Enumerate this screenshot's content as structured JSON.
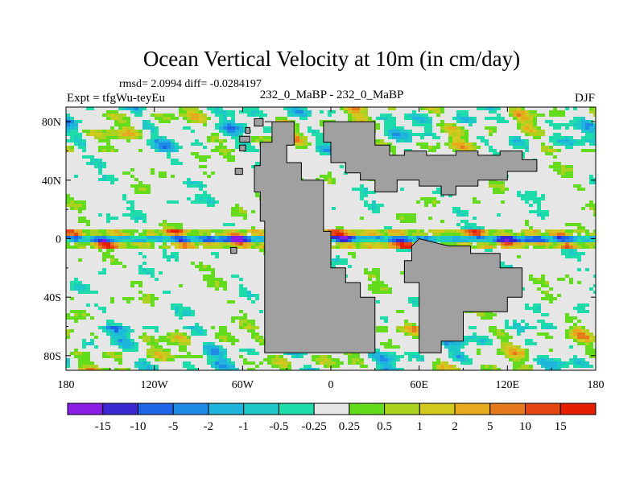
{
  "chart_data": {
    "type": "heatmap",
    "title": "Ocean Vertical Velocity at 10m (in cm/day)",
    "stats_line": "rmsd= 2.0994 diff= -0.0284197",
    "left_label": "Expt = tfgWu-teyEu",
    "center_label": "232_0_MaBP - 232_0_MaBP",
    "right_label": "DJF",
    "x_range": [
      -180,
      180
    ],
    "y_range": [
      -90,
      90
    ],
    "x_ticks": [
      {
        "value": -180,
        "label": "180"
      },
      {
        "value": -120,
        "label": "120W"
      },
      {
        "value": -60,
        "label": "60W"
      },
      {
        "value": 0,
        "label": "0"
      },
      {
        "value": 60,
        "label": "60E"
      },
      {
        "value": 120,
        "label": "120E"
      },
      {
        "value": 180,
        "label": "180"
      }
    ],
    "y_ticks": [
      {
        "value": 80,
        "label": "80N"
      },
      {
        "value": 40,
        "label": "40N"
      },
      {
        "value": 0,
        "label": "0"
      },
      {
        "value": -40,
        "label": "40S"
      },
      {
        "value": -80,
        "label": "80S"
      }
    ],
    "colorbar": {
      "labels": [
        "-15",
        "-10",
        "-5",
        "-2",
        "-1",
        "-0.5",
        "-0.25",
        "0.25",
        "0.5",
        "1",
        "2",
        "5",
        "10",
        "15"
      ],
      "colors": [
        "#8a1ee6",
        "#3c28d2",
        "#1e64e6",
        "#1e8ce6",
        "#1eb4dc",
        "#1ec8c8",
        "#1edcaa",
        "#e6e6e6",
        "#64dc1e",
        "#aad21e",
        "#d2c81e",
        "#e6aa1e",
        "#e6781e",
        "#e64614",
        "#e61e00"
      ]
    },
    "land_color": "#a0a0a0",
    "ocean_neutral_color": "#e6e6e6",
    "land_polygons": [
      [
        [
          -45,
          80
        ],
        [
          -40,
          80
        ],
        [
          -40,
          66
        ],
        [
          -48,
          66
        ],
        [
          -48,
          50
        ],
        [
          -52,
          50
        ],
        [
          -52,
          32
        ],
        [
          -48,
          32
        ],
        [
          -48,
          12
        ],
        [
          -45,
          12
        ],
        [
          -45,
          -78
        ],
        [
          30,
          -78
        ],
        [
          30,
          -40
        ],
        [
          20,
          -40
        ],
        [
          20,
          -30
        ],
        [
          10,
          -30
        ],
        [
          10,
          -20
        ],
        [
          0,
          -20
        ],
        [
          0,
          5
        ],
        [
          -5,
          5
        ],
        [
          -5,
          40
        ],
        [
          -20,
          40
        ],
        [
          -20,
          52
        ],
        [
          -30,
          52
        ],
        [
          -30,
          64
        ],
        [
          -25,
          64
        ],
        [
          -25,
          80
        ]
      ],
      [
        [
          -5,
          80
        ],
        [
          30,
          80
        ],
        [
          30,
          64
        ],
        [
          40,
          64
        ],
        [
          40,
          57
        ],
        [
          50,
          57
        ],
        [
          50,
          60
        ],
        [
          65,
          60
        ],
        [
          65,
          57
        ],
        [
          85,
          57
        ],
        [
          85,
          60
        ],
        [
          100,
          60
        ],
        [
          100,
          57
        ],
        [
          115,
          57
        ],
        [
          115,
          60
        ],
        [
          130,
          60
        ],
        [
          130,
          54
        ],
        [
          140,
          54
        ],
        [
          140,
          46
        ],
        [
          120,
          46
        ],
        [
          120,
          40
        ],
        [
          100,
          40
        ],
        [
          100,
          36
        ],
        [
          85,
          36
        ],
        [
          85,
          30
        ],
        [
          75,
          30
        ],
        [
          75,
          36
        ],
        [
          60,
          36
        ],
        [
          60,
          40
        ],
        [
          45,
          40
        ],
        [
          45,
          32
        ],
        [
          30,
          32
        ],
        [
          30,
          40
        ],
        [
          20,
          40
        ],
        [
          20,
          45
        ],
        [
          10,
          45
        ],
        [
          10,
          52
        ],
        [
          0,
          52
        ],
        [
          0,
          66
        ],
        [
          -5,
          66
        ]
      ],
      [
        [
          60,
          0
        ],
        [
          80,
          -5
        ],
        [
          95,
          -5
        ],
        [
          95,
          -10
        ],
        [
          115,
          -10
        ],
        [
          115,
          -20
        ],
        [
          130,
          -20
        ],
        [
          130,
          -40
        ],
        [
          120,
          -40
        ],
        [
          120,
          -50
        ],
        [
          90,
          -50
        ],
        [
          90,
          -70
        ],
        [
          75,
          -70
        ],
        [
          75,
          -78
        ],
        [
          60,
          -78
        ],
        [
          60,
          -30
        ],
        [
          50,
          -30
        ],
        [
          50,
          -15
        ],
        [
          55,
          -15
        ],
        [
          55,
          -5
        ]
      ],
      [
        [
          -58,
          76
        ],
        [
          -55,
          76
        ],
        [
          -55,
          72
        ],
        [
          -58,
          72
        ]
      ],
      [
        [
          -62,
          70
        ],
        [
          -55,
          70
        ],
        [
          -55,
          66
        ],
        [
          -62,
          66
        ]
      ],
      [
        [
          -62,
          64
        ],
        [
          -58,
          64
        ],
        [
          -58,
          60
        ],
        [
          -62,
          60
        ]
      ],
      [
        [
          -65,
          48
        ],
        [
          -60,
          48
        ],
        [
          -60,
          44
        ],
        [
          -65,
          44
        ]
      ],
      [
        [
          -68,
          -6
        ],
        [
          -64,
          -6
        ],
        [
          -64,
          -10
        ],
        [
          -68,
          -10
        ]
      ],
      [
        [
          -52,
          82
        ],
        [
          -46,
          82
        ],
        [
          -46,
          77
        ],
        [
          -52,
          77
        ]
      ]
    ]
  }
}
